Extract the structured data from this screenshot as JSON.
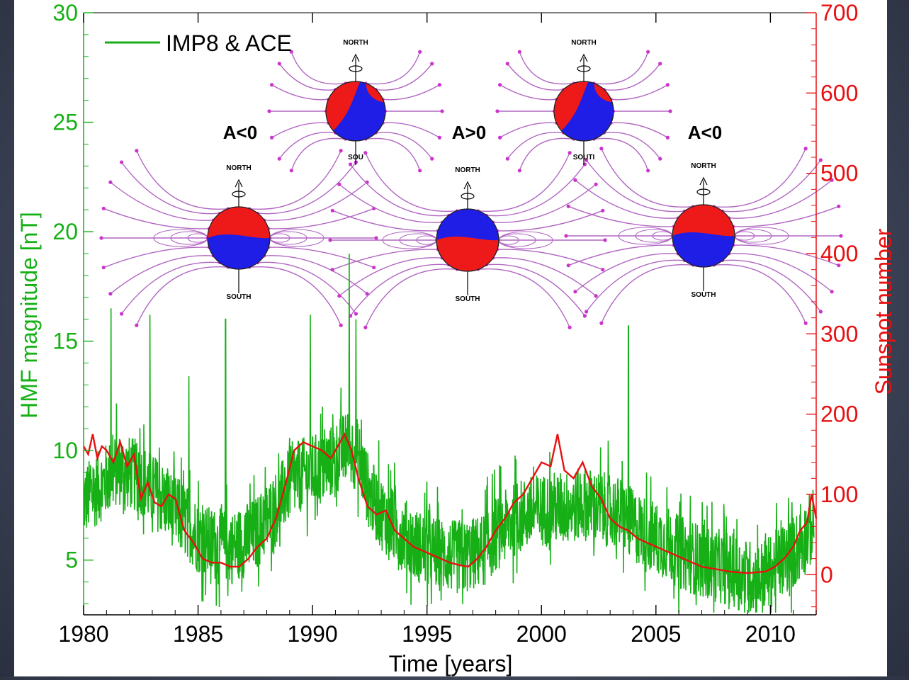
{
  "chart_data": {
    "type": "line",
    "xlabel": "Time [years]",
    "ylabel_left": "HMF magnitude [nT]",
    "ylabel_right": "Sunspot number",
    "xlim": [
      1980,
      2012
    ],
    "ylim_left": [
      2.5,
      30
    ],
    "ylim_right": [
      -50,
      700
    ],
    "x_ticks": [
      1980,
      1985,
      1990,
      1995,
      2000,
      2005,
      2010
    ],
    "y_ticks_left": [
      5,
      10,
      15,
      20,
      25,
      30
    ],
    "y_ticks_right": [
      0,
      100,
      200,
      300,
      400,
      500,
      600,
      700
    ],
    "legend": {
      "placement": "top-left",
      "entries": [
        "IMP8 & ACE"
      ]
    },
    "colors": {
      "hmf": "#16b016",
      "sunspot": "#e81010",
      "left_axis": "#16b016",
      "right_axis": "#e81010"
    },
    "series": [
      {
        "name": "IMP8 & ACE",
        "axis": "left",
        "x": [
          1980.0,
          1980.5,
          1981.0,
          1981.5,
          1982.0,
          1982.5,
          1983.0,
          1983.5,
          1984.0,
          1984.5,
          1985.0,
          1985.5,
          1986.0,
          1986.5,
          1987.0,
          1987.5,
          1988.0,
          1988.5,
          1989.0,
          1989.5,
          1990.0,
          1990.5,
          1991.0,
          1991.5,
          1992.0,
          1992.5,
          1993.0,
          1993.5,
          1994.0,
          1994.5,
          1995.0,
          1995.5,
          1996.0,
          1996.5,
          1997.0,
          1997.5,
          1998.0,
          1998.5,
          1999.0,
          1999.5,
          2000.0,
          2000.5,
          2001.0,
          2001.5,
          2002.0,
          2002.5,
          2003.0,
          2003.5,
          2004.0,
          2004.5,
          2005.0,
          2005.5,
          2006.0,
          2006.5,
          2007.0,
          2007.5,
          2008.0,
          2008.5,
          2009.0,
          2009.5,
          2010.0,
          2010.5,
          2011.0,
          2011.5,
          2011.9
        ],
        "values": [
          7.5,
          8.0,
          8.5,
          9.0,
          8.8,
          8.6,
          8.0,
          7.6,
          7.0,
          6.6,
          5.9,
          5.6,
          5.5,
          5.4,
          5.7,
          6.0,
          6.7,
          7.4,
          8.3,
          8.7,
          8.9,
          9.0,
          9.5,
          10.0,
          9.6,
          7.8,
          7.0,
          6.4,
          6.0,
          5.5,
          5.3,
          5.1,
          5.0,
          4.9,
          5.1,
          5.3,
          6.0,
          6.4,
          6.8,
          7.0,
          7.1,
          7.2,
          7.2,
          7.3,
          7.4,
          7.2,
          7.1,
          6.9,
          6.4,
          6.1,
          5.8,
          5.6,
          5.2,
          5.0,
          4.8,
          4.6,
          4.5,
          4.3,
          4.1,
          4.0,
          4.3,
          4.8,
          5.2,
          5.8,
          6.5
        ],
        "noise_amplitude": 1.7
      },
      {
        "name": "",
        "axis": "right",
        "x": [
          1980.0,
          1980.2,
          1980.4,
          1980.6,
          1980.8,
          1981.0,
          1981.3,
          1981.6,
          1981.9,
          1982.2,
          1982.5,
          1982.8,
          1983.1,
          1983.4,
          1983.7,
          1984.0,
          1984.4,
          1984.8,
          1985.2,
          1985.6,
          1986.0,
          1986.4,
          1986.8,
          1987.2,
          1987.6,
          1988.0,
          1988.4,
          1988.8,
          1989.2,
          1989.6,
          1990.0,
          1990.4,
          1990.8,
          1991.1,
          1991.4,
          1991.7,
          1992.0,
          1992.4,
          1992.8,
          1993.2,
          1993.6,
          1994.0,
          1994.4,
          1994.8,
          1995.2,
          1995.6,
          1996.0,
          1996.4,
          1996.8,
          1997.2,
          1997.6,
          1998.0,
          1998.4,
          1998.8,
          1999.2,
          1999.6,
          2000.0,
          2000.4,
          2000.7,
          2001.0,
          2001.4,
          2001.8,
          2002.2,
          2002.6,
          2003.0,
          2003.4,
          2003.8,
          2004.2,
          2004.6,
          2005.0,
          2005.4,
          2005.8,
          2006.2,
          2006.6,
          2007.0,
          2007.4,
          2007.8,
          2008.2,
          2008.6,
          2009.0,
          2009.4,
          2009.8,
          2010.2,
          2010.6,
          2011.0,
          2011.3,
          2011.6,
          2011.8,
          2012.0
        ],
        "values": [
          160,
          150,
          175,
          145,
          160,
          155,
          140,
          165,
          135,
          150,
          95,
          115,
          90,
          85,
          100,
          95,
          55,
          40,
          20,
          15,
          15,
          10,
          10,
          20,
          35,
          45,
          70,
          110,
          155,
          165,
          160,
          155,
          145,
          160,
          175,
          155,
          120,
          85,
          75,
          80,
          55,
          45,
          35,
          30,
          25,
          20,
          15,
          12,
          10,
          20,
          35,
          55,
          70,
          90,
          100,
          120,
          140,
          135,
          175,
          130,
          120,
          140,
          110,
          95,
          70,
          60,
          55,
          45,
          40,
          35,
          30,
          25,
          20,
          15,
          10,
          8,
          6,
          4,
          3,
          2,
          3,
          4,
          10,
          20,
          35,
          55,
          65,
          100,
          70
        ]
      }
    ],
    "annotations": [
      {
        "label": "A<0",
        "north": "NORTH",
        "south": "SOUTH"
      },
      {
        "label": "A>0",
        "north": "NORTH",
        "south": "SOUTH"
      },
      {
        "label": "A<0",
        "north": "NORTH",
        "south": "SOUTH"
      },
      {
        "label": "",
        "north": "NORTH",
        "south": "SOU"
      },
      {
        "label": "",
        "north": "NORTH",
        "south": "SOUTI"
      }
    ]
  }
}
